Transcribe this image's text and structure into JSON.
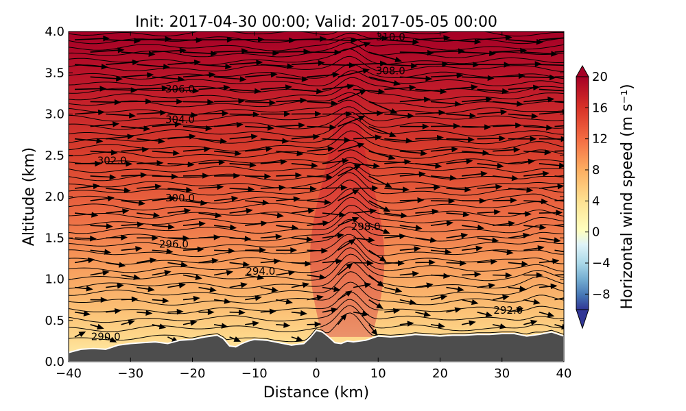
{
  "chart_data": {
    "type": "filled-contour cross-section with theta contours and wind vectors",
    "title": "Init: 2017-04-30 00:00; Valid: 2017-05-05 00:00",
    "xlabel": "Distance (km)",
    "ylabel": "Altitude (km)",
    "xlim": [
      -40,
      40
    ],
    "ylim": [
      0.0,
      4.0
    ],
    "x_ticks": [
      -40,
      -30,
      -20,
      -10,
      0,
      10,
      20,
      30,
      40
    ],
    "x_tick_labels": [
      "−40",
      "−30",
      "−20",
      "−10",
      "0",
      "10",
      "20",
      "30",
      "40"
    ],
    "y_ticks": [
      0.0,
      0.5,
      1.0,
      1.5,
      2.0,
      2.5,
      3.0,
      3.5,
      4.0
    ],
    "y_tick_labels": [
      "0.0",
      "0.5",
      "1.0",
      "1.5",
      "2.0",
      "2.5",
      "3.0",
      "3.5",
      "4.0"
    ],
    "colorbar": {
      "label": "Horizontal wind speed (m s⁻¹)",
      "range": [
        -10,
        20
      ],
      "extend": "both",
      "ticks": [
        20,
        16,
        12,
        8,
        4,
        0,
        -4,
        -8
      ],
      "tick_labels": [
        "20",
        "16",
        "12",
        "8",
        "4",
        "0",
        "−4",
        "−8"
      ],
      "colormap": "RdYlBu_r",
      "colors": [
        "#313695",
        "#4575b4",
        "#74add1",
        "#abd9e9",
        "#e0f3f8",
        "#ffffbf",
        "#fee090",
        "#fdae61",
        "#f46d43",
        "#d73027",
        "#a50026"
      ]
    },
    "terrain": {
      "color": "#4d4d4d",
      "x": [
        -40,
        -38,
        -36,
        -34,
        -32,
        -30,
        -28,
        -26,
        -24,
        -22,
        -20,
        -18,
        -16,
        -15,
        -14,
        -13,
        -12,
        -11,
        -10,
        -8,
        -6,
        -4,
        -2,
        -1,
        0,
        1,
        2,
        3,
        4,
        5,
        6,
        8,
        10,
        12,
        14,
        16,
        18,
        20,
        22,
        24,
        26,
        28,
        30,
        32,
        34,
        36,
        38,
        40
      ],
      "height": [
        0.11,
        0.15,
        0.16,
        0.15,
        0.2,
        0.22,
        0.23,
        0.24,
        0.22,
        0.26,
        0.27,
        0.3,
        0.32,
        0.28,
        0.19,
        0.18,
        0.22,
        0.25,
        0.27,
        0.26,
        0.23,
        0.2,
        0.22,
        0.29,
        0.38,
        0.36,
        0.3,
        0.23,
        0.22,
        0.25,
        0.24,
        0.26,
        0.31,
        0.3,
        0.31,
        0.33,
        0.32,
        0.31,
        0.32,
        0.32,
        0.33,
        0.33,
        0.34,
        0.34,
        0.31,
        0.33,
        0.36,
        0.31
      ]
    },
    "theta_contours": {
      "interval_K": 0.5,
      "levels": [
        290.0,
        290.5,
        291.0,
        291.5,
        292.0,
        292.5,
        293.0,
        293.5,
        294.0,
        294.5,
        295.0,
        295.5,
        296.0,
        296.5,
        297.0,
        297.5,
        298.0,
        298.5,
        299.0,
        299.5,
        300.0,
        300.5,
        301.0,
        301.5,
        302.0,
        302.5,
        303.0,
        303.5,
        304.0,
        304.5,
        305.0,
        305.5,
        306.0,
        306.5,
        307.0,
        307.5,
        308.0,
        308.5,
        309.0,
        309.5,
        310.0
      ],
      "labels": [
        {
          "text": "290.0",
          "x": -34,
          "y": 0.3
        },
        {
          "text": "292.0",
          "x": 31,
          "y": 0.62
        },
        {
          "text": "294.0",
          "x": -9,
          "y": 1.09
        },
        {
          "text": "296.0",
          "x": -23,
          "y": 1.42
        },
        {
          "text": "298.0",
          "x": 8,
          "y": 1.63
        },
        {
          "text": "300.0",
          "x": -22,
          "y": 1.98
        },
        {
          "text": "302.0",
          "x": -33,
          "y": 2.43
        },
        {
          "text": "304.0",
          "x": -22,
          "y": 2.93
        },
        {
          "text": "306.0",
          "x": -22,
          "y": 3.3
        },
        {
          "text": "308.0",
          "x": 12,
          "y": 3.52
        },
        {
          "text": "310.0",
          "x": 12,
          "y": 3.93
        }
      ]
    },
    "wind_field": {
      "description": "Westerly flow (left to right) throughout; weak near the surface, increasing with altitude to ~20 m/s near 4 km; strong vertical perturbation near x=5 km",
      "speed_profile_m_s": [
        {
          "z": 0.3,
          "u": 3
        },
        {
          "z": 0.5,
          "u": 5
        },
        {
          "z": 1.0,
          "u": 8
        },
        {
          "z": 1.5,
          "u": 10
        },
        {
          "z": 2.0,
          "u": 12
        },
        {
          "z": 2.5,
          "u": 14
        },
        {
          "z": 3.0,
          "u": 16
        },
        {
          "z": 3.5,
          "u": 18
        },
        {
          "z": 4.0,
          "u": 20
        }
      ]
    }
  }
}
